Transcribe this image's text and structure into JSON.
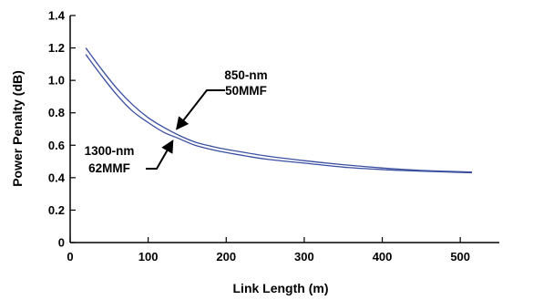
{
  "chart_data": {
    "type": "line",
    "title": "",
    "xlabel": "Link Length (m)",
    "ylabel": "Power Penalty (dB)",
    "xlim": [
      0,
      550
    ],
    "ylim": [
      0,
      1.4
    ],
    "xticks": [
      0,
      100,
      200,
      300,
      400,
      500
    ],
    "yticks": [
      0,
      0.2,
      0.4,
      0.6,
      0.8,
      1.0,
      1.2,
      1.4
    ],
    "xtick_labels": [
      "0",
      "100",
      "200",
      "300",
      "400",
      "500"
    ],
    "ytick_labels": [
      "0",
      "0.2",
      "0.4",
      "0.6",
      "0.8",
      "1.0",
      "1.2",
      "1.4"
    ],
    "grid": false,
    "line_color": "#3a4fa0",
    "series": [
      {
        "label": "850-nm 50MMF",
        "x": [
          20,
          40,
          60,
          80,
          100,
          120,
          140,
          160,
          180,
          200,
          250,
          300,
          350,
          400,
          450,
          515
        ],
        "y": [
          1.2,
          1.07,
          0.95,
          0.85,
          0.77,
          0.71,
          0.66,
          0.62,
          0.595,
          0.575,
          0.535,
          0.505,
          0.48,
          0.46,
          0.445,
          0.435
        ]
      },
      {
        "label": "1300-nm 62MMF",
        "x": [
          20,
          40,
          60,
          80,
          100,
          120,
          140,
          160,
          180,
          200,
          250,
          300,
          350,
          400,
          450,
          515
        ],
        "y": [
          1.16,
          1.03,
          0.91,
          0.81,
          0.74,
          0.68,
          0.64,
          0.6,
          0.575,
          0.555,
          0.515,
          0.49,
          0.465,
          0.45,
          0.44,
          0.43
        ]
      }
    ],
    "annotations": [
      {
        "line1": "850-nm",
        "line2": "50MMF",
        "target_series": 0,
        "target_x": 133
      },
      {
        "line1": "1300-nm",
        "line2": "62MMF",
        "target_series": 1,
        "target_x": 135
      }
    ]
  }
}
